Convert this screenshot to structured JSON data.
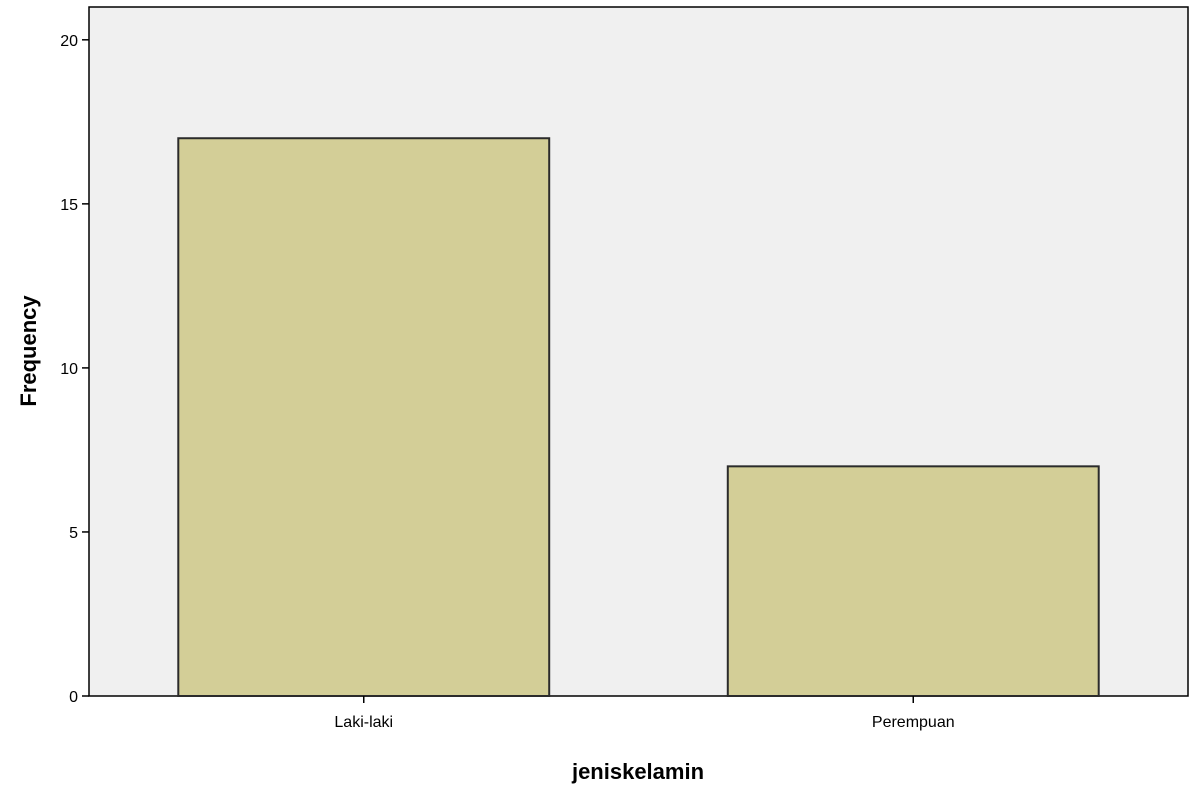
{
  "chart_data": {
    "type": "bar",
    "categories": [
      "Laki-laki",
      "Perempuan"
    ],
    "values": [
      17,
      7
    ],
    "title": "",
    "xlabel": "jeniskelamin",
    "ylabel": "Frequency",
    "ylim": [
      0,
      21
    ],
    "yticks": [
      "0",
      "5",
      "10",
      "15",
      "20"
    ],
    "grid": false,
    "colors": {
      "plot_background": "#f0f0f0",
      "bar_fill": "#d3ce97",
      "bar_stroke": "#2b2b2b",
      "axis": "#000000"
    }
  }
}
